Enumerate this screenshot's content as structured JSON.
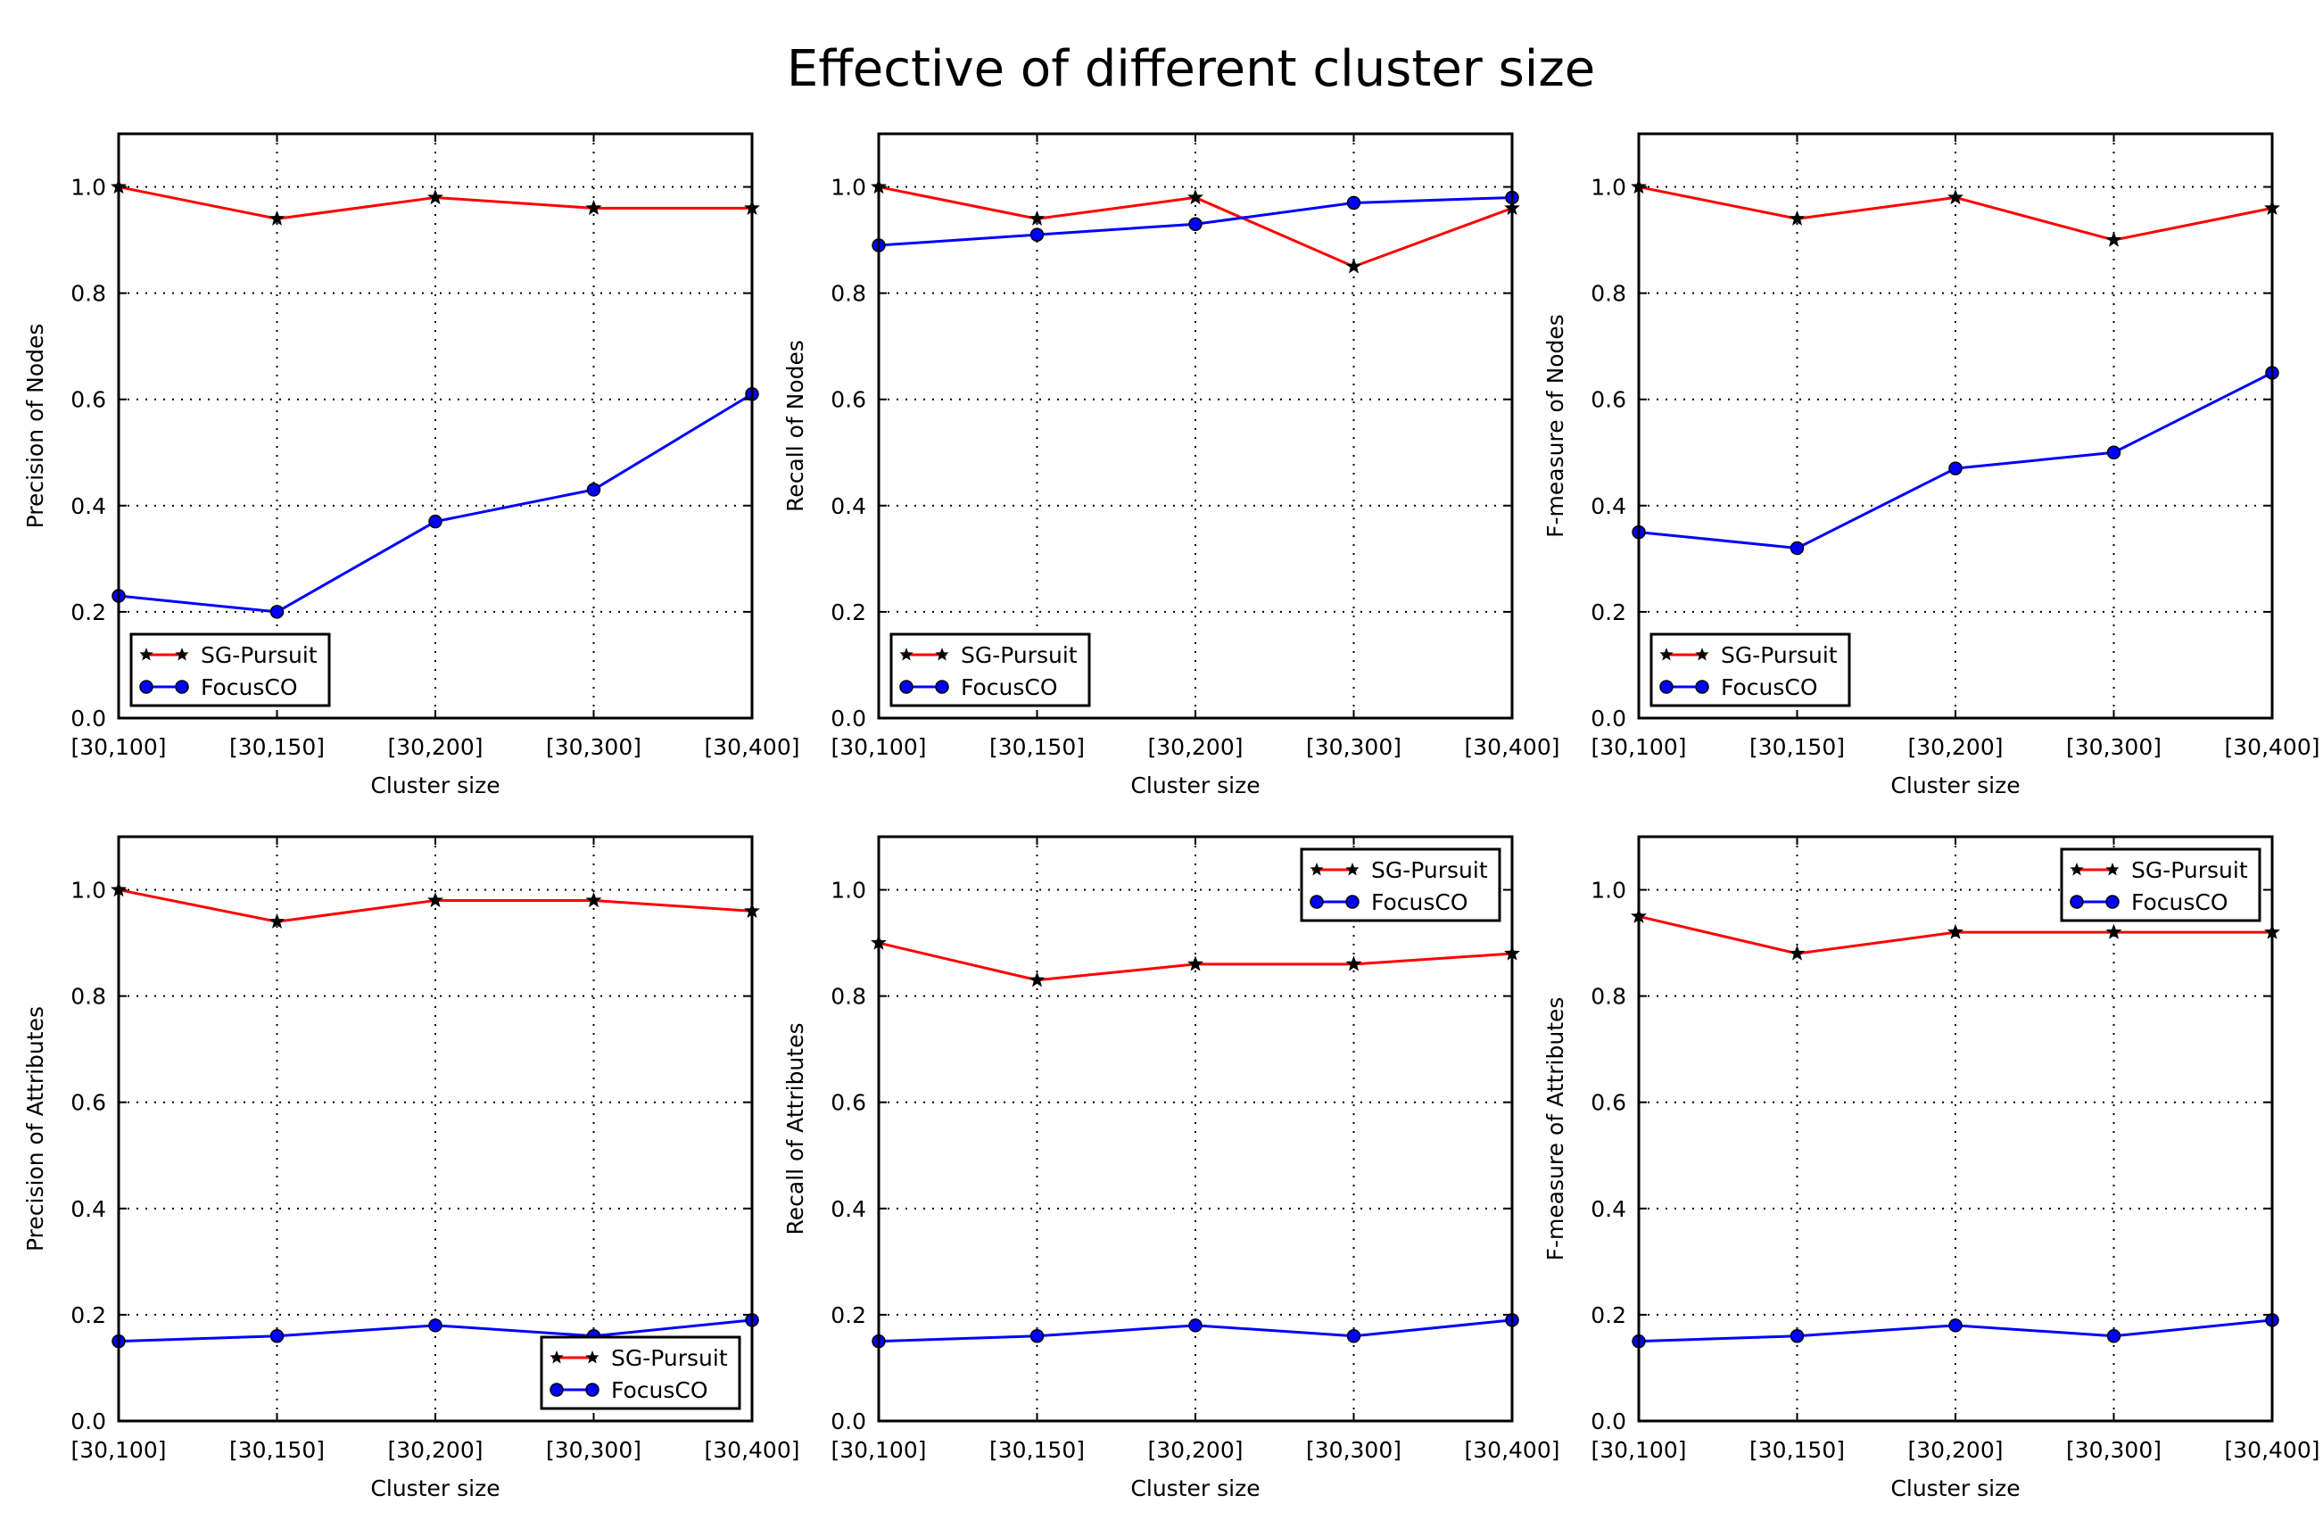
{
  "figure": {
    "title": "Effective of different cluster size"
  },
  "colors": {
    "sg_pursuit": "#ff0000",
    "focusco": "#0000ff",
    "marker_sg": "#000000",
    "marker_focusco": "#0000ff",
    "grid": "#000000",
    "axes": "#000000"
  },
  "chart_data": [
    {
      "type": "line",
      "title": "",
      "xlabel": "Cluster size",
      "ylabel": "Precision of Nodes",
      "categories": [
        "[30,100]",
        "[30,150]",
        "[30,200]",
        "[30,300]",
        "[30,400]"
      ],
      "ylim": [
        0,
        1.1
      ],
      "yticks": [
        "0.0",
        "0.2",
        "0.4",
        "0.6",
        "0.8",
        "1.0"
      ],
      "grid": true,
      "legend": "lower-left",
      "series": [
        {
          "name": "SG-Pursuit",
          "marker": "star",
          "values": [
            1.0,
            0.94,
            0.98,
            0.96,
            0.96
          ]
        },
        {
          "name": "FocusCO",
          "marker": "circle",
          "values": [
            0.23,
            0.2,
            0.37,
            0.43,
            0.61
          ]
        }
      ]
    },
    {
      "type": "line",
      "title": "",
      "xlabel": "Cluster size",
      "ylabel": "Recall of Nodes",
      "categories": [
        "[30,100]",
        "[30,150]",
        "[30,200]",
        "[30,300]",
        "[30,400]"
      ],
      "ylim": [
        0,
        1.1
      ],
      "yticks": [
        "0.0",
        "0.2",
        "0.4",
        "0.6",
        "0.8",
        "1.0"
      ],
      "grid": true,
      "legend": "lower-left",
      "series": [
        {
          "name": "SG-Pursuit",
          "marker": "star",
          "values": [
            1.0,
            0.94,
            0.98,
            0.85,
            0.96
          ]
        },
        {
          "name": "FocusCO",
          "marker": "circle",
          "values": [
            0.89,
            0.91,
            0.93,
            0.97,
            0.98
          ]
        }
      ]
    },
    {
      "type": "line",
      "title": "",
      "xlabel": "Cluster size",
      "ylabel": "F-measure of Nodes",
      "categories": [
        "[30,100]",
        "[30,150]",
        "[30,200]",
        "[30,300]",
        "[30,400]"
      ],
      "ylim": [
        0,
        1.1
      ],
      "yticks": [
        "0.0",
        "0.2",
        "0.4",
        "0.6",
        "0.8",
        "1.0"
      ],
      "grid": true,
      "legend": "lower-left",
      "series": [
        {
          "name": "SG-Pursuit",
          "marker": "star",
          "values": [
            1.0,
            0.94,
            0.98,
            0.9,
            0.96
          ]
        },
        {
          "name": "FocusCO",
          "marker": "circle",
          "values": [
            0.35,
            0.32,
            0.47,
            0.5,
            0.65
          ]
        }
      ]
    },
    {
      "type": "line",
      "title": "",
      "xlabel": "Cluster size",
      "ylabel": "Precision of Attributes",
      "categories": [
        "[30,100]",
        "[30,150]",
        "[30,200]",
        "[30,300]",
        "[30,400]"
      ],
      "ylim": [
        0,
        1.1
      ],
      "yticks": [
        "0.0",
        "0.2",
        "0.4",
        "0.6",
        "0.8",
        "1.0"
      ],
      "grid": true,
      "legend": "lower-right",
      "series": [
        {
          "name": "SG-Pursuit",
          "marker": "star",
          "values": [
            1.0,
            0.94,
            0.98,
            0.98,
            0.96
          ]
        },
        {
          "name": "FocusCO",
          "marker": "circle",
          "values": [
            0.15,
            0.16,
            0.18,
            0.16,
            0.19
          ]
        }
      ]
    },
    {
      "type": "line",
      "title": "",
      "xlabel": "Cluster size",
      "ylabel": "Recall of Attributes",
      "categories": [
        "[30,100]",
        "[30,150]",
        "[30,200]",
        "[30,300]",
        "[30,400]"
      ],
      "ylim": [
        0,
        1.1
      ],
      "yticks": [
        "0.0",
        "0.2",
        "0.4",
        "0.6",
        "0.8",
        "1.0"
      ],
      "grid": true,
      "legend": "upper-right",
      "series": [
        {
          "name": "SG-Pursuit",
          "marker": "star",
          "values": [
            0.9,
            0.83,
            0.86,
            0.86,
            0.88
          ]
        },
        {
          "name": "FocusCO",
          "marker": "circle",
          "values": [
            0.15,
            0.16,
            0.18,
            0.16,
            0.19
          ]
        }
      ]
    },
    {
      "type": "line",
      "title": "",
      "xlabel": "Cluster size",
      "ylabel": "F-measure of Attributes",
      "categories": [
        "[30,100]",
        "[30,150]",
        "[30,200]",
        "[30,300]",
        "[30,400]"
      ],
      "ylim": [
        0,
        1.1
      ],
      "yticks": [
        "0.0",
        "0.2",
        "0.4",
        "0.6",
        "0.8",
        "1.0"
      ],
      "grid": true,
      "legend": "upper-right",
      "series": [
        {
          "name": "SG-Pursuit",
          "marker": "star",
          "values": [
            0.95,
            0.88,
            0.92,
            0.92,
            0.92
          ]
        },
        {
          "name": "FocusCO",
          "marker": "circle",
          "values": [
            0.15,
            0.16,
            0.18,
            0.16,
            0.19
          ]
        }
      ]
    }
  ]
}
